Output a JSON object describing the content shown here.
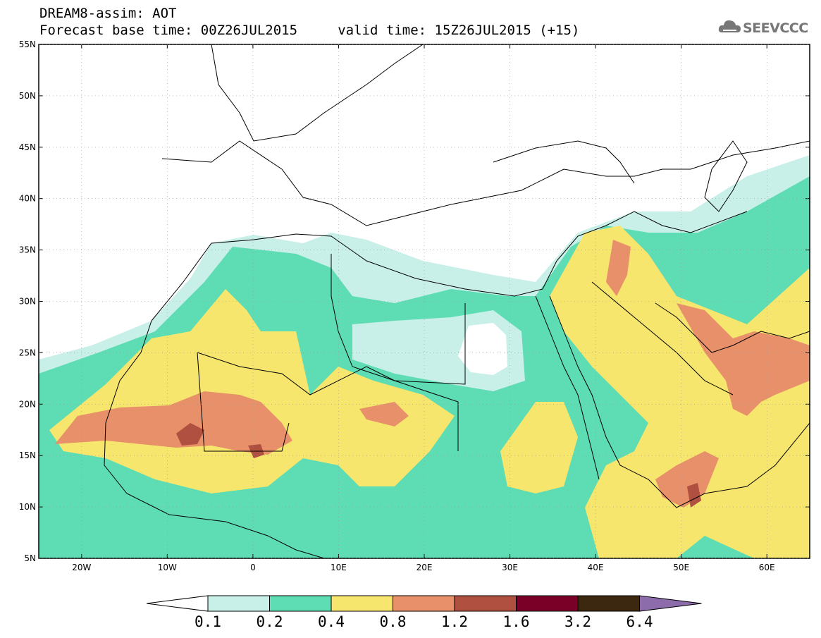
{
  "header": {
    "line1": "DREAM8-assim: AOT",
    "line2": "Forecast base time: 00Z26JUL2015     valid time: 15Z26JUL2015 (+15)"
  },
  "logo": {
    "text": "SEEVCCC",
    "icon": "cloud-icon"
  },
  "map": {
    "lat_labels": [
      "55N",
      "50N",
      "45N",
      "40N",
      "35N",
      "30N",
      "25N",
      "20N",
      "15N",
      "10N",
      "5N"
    ],
    "lon_labels": [
      "20W",
      "10W",
      "0",
      "10E",
      "20E",
      "30E",
      "40E",
      "50E",
      "60E"
    ],
    "lat_range": [
      5,
      55
    ],
    "lon_range": [
      -25,
      65
    ]
  },
  "colorbar": {
    "ticks": [
      "0.1",
      "0.2",
      "0.4",
      "0.8",
      "1.2",
      "1.6",
      "3.2",
      "6.4"
    ],
    "colors": [
      "#ffffff",
      "#c8f0e8",
      "#5edcb4",
      "#f6e66e",
      "#e8906a",
      "#b05040",
      "#7a0028",
      "#3c2810",
      "#8c6caa"
    ]
  }
}
